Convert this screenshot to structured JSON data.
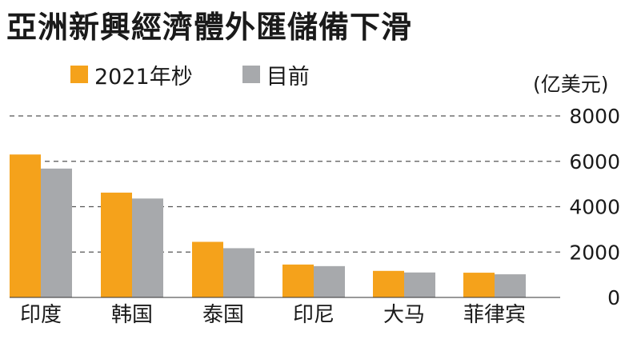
{
  "title": "亞洲新興經濟體外匯儲備下滑",
  "unit": "(亿美元)",
  "colors": {
    "series_2021": "#f5a21b",
    "series_now": "#a7a9ac",
    "text": "#1a1a1a",
    "grid": "#555555"
  },
  "chart_data": {
    "type": "bar",
    "title": "亞洲新興經濟體外匯儲備下滑",
    "ylabel": "(亿美元)",
    "xlabel": "",
    "categories": [
      "印度",
      "韩国",
      "泰国",
      "印尼",
      "大马",
      "菲律宾"
    ],
    "series": [
      {
        "name": "2021年杪",
        "values": [
          6300,
          4620,
          2450,
          1450,
          1170,
          1090
        ]
      },
      {
        "name": "目前",
        "values": [
          5680,
          4360,
          2170,
          1380,
          1100,
          1020
        ]
      }
    ],
    "ylim": [
      0,
      8000
    ],
    "yticks": [
      "8000",
      "6000",
      "4000",
      "2000",
      "0"
    ],
    "grid": "dashed horizontal",
    "legend": "top-left"
  }
}
